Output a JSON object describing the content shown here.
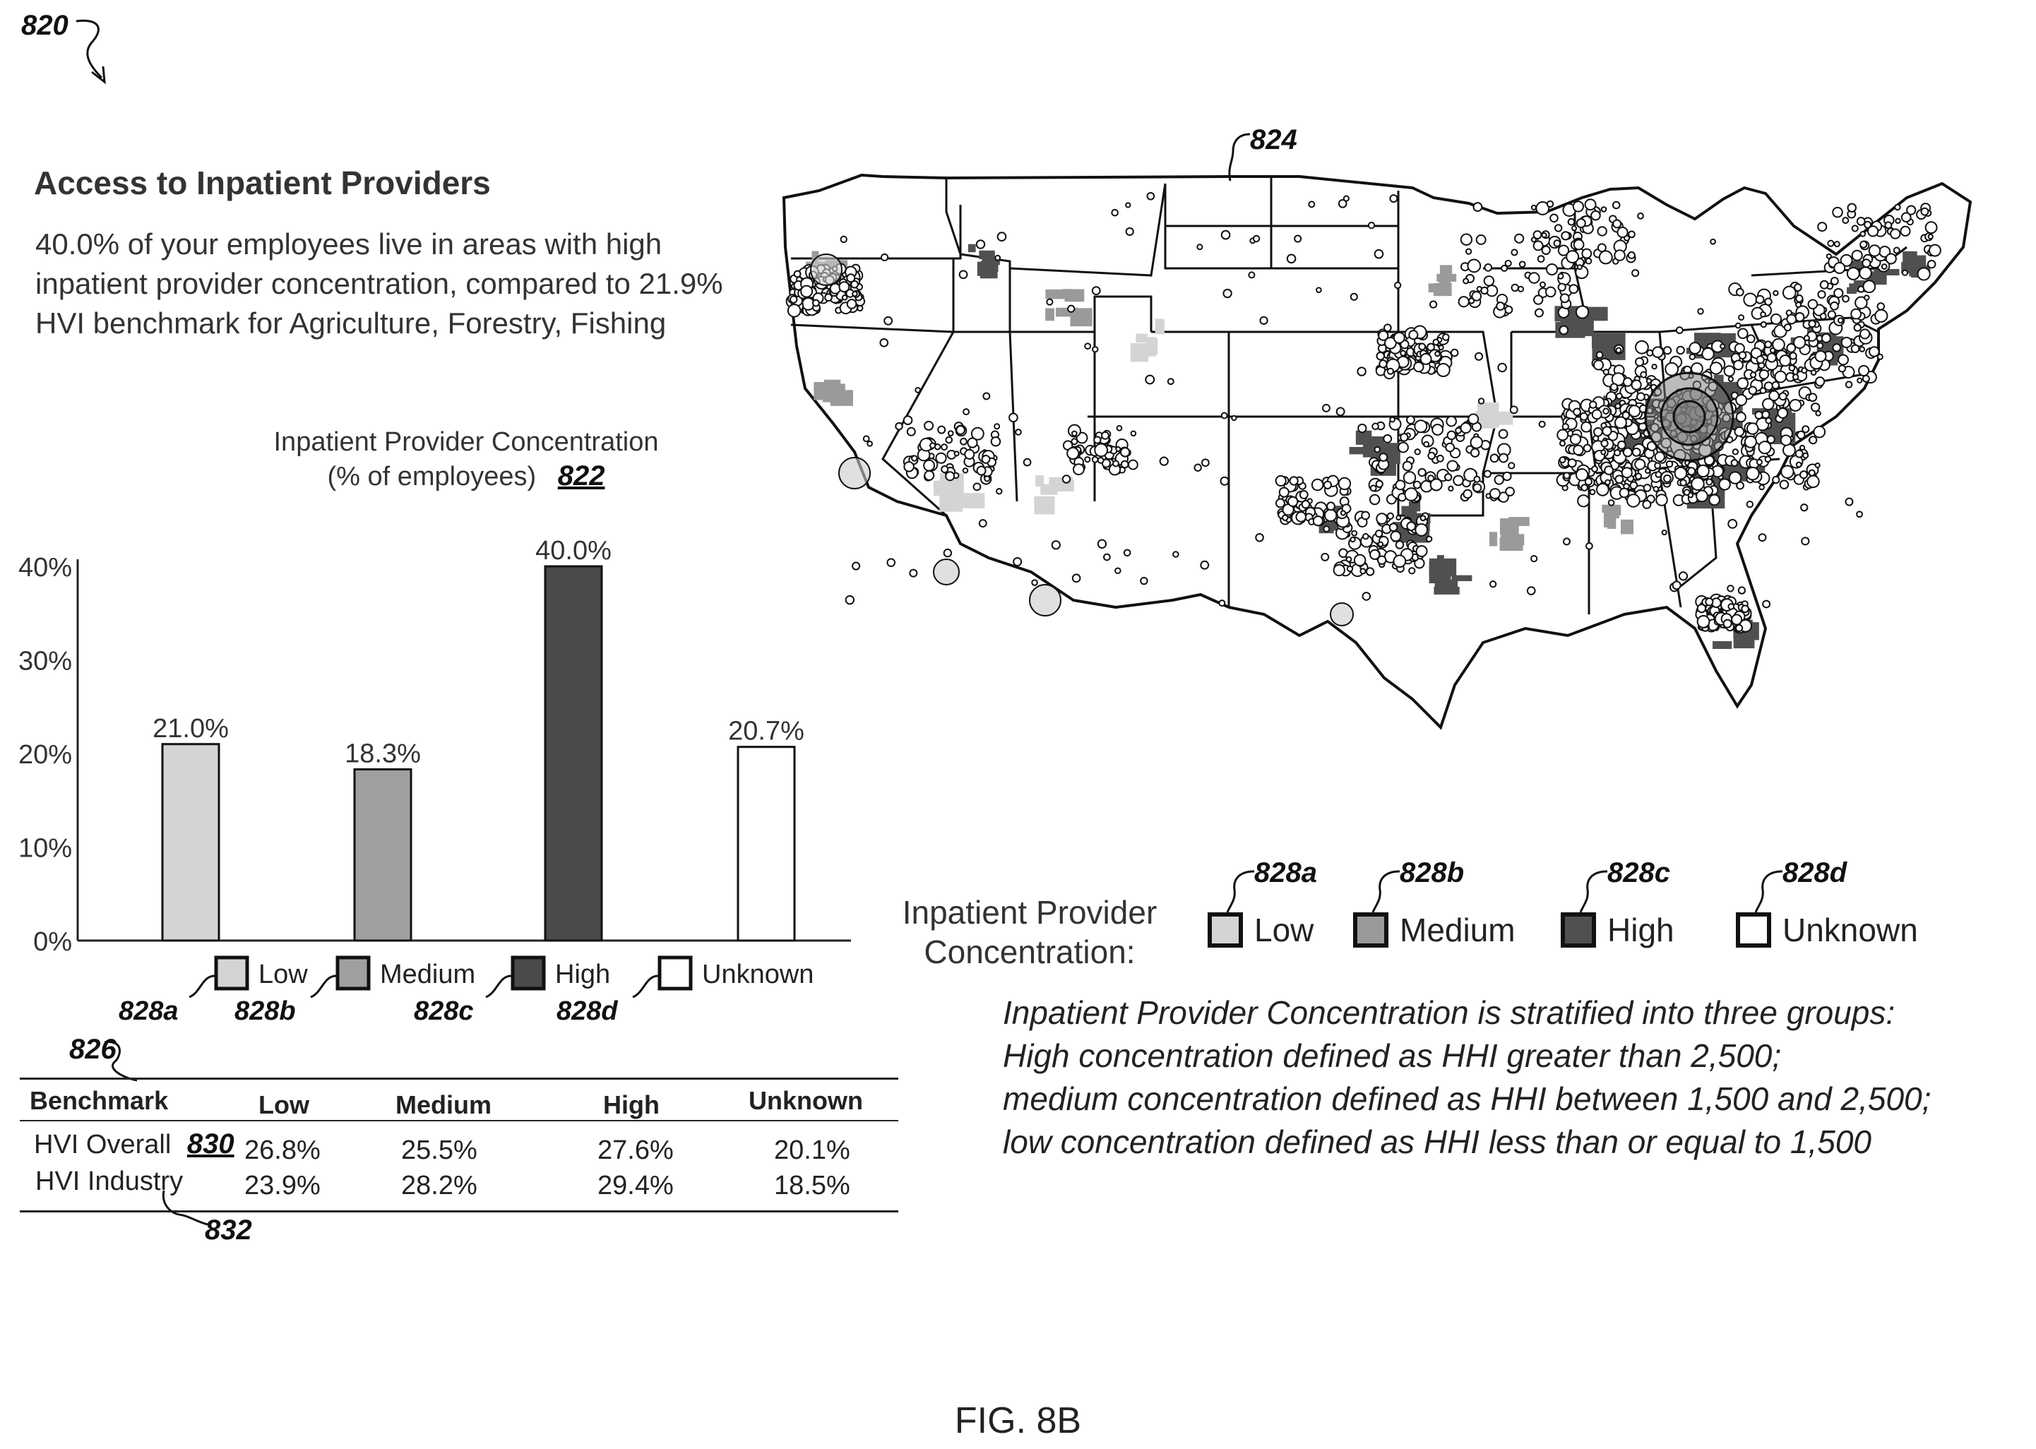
{
  "figure_ref": "820",
  "title": "Access to Inpatient Providers",
  "summary": "40.0% of your employees live in areas with high inpatient provider concentration, compared to 21.9% HVI benchmark for Agriculture, Forestry, Fishing",
  "chart": {
    "title_line1": "Inpatient Provider Concentration",
    "title_line2": "(% of employees)",
    "ref": "822"
  },
  "chart_data": {
    "type": "bar",
    "categories": [
      "Low",
      "Medium",
      "High",
      "Unknown"
    ],
    "values": [
      21.0,
      18.3,
      40.0,
      20.7
    ],
    "value_labels": [
      "21.0%",
      "18.3%",
      "40.0%",
      "20.7%"
    ],
    "ylim": [
      0,
      40
    ],
    "yticks": [
      "0%",
      "10%",
      "20%",
      "30%",
      "40%"
    ],
    "ytick_values": [
      0,
      10,
      20,
      30,
      40
    ],
    "colors": [
      "#d4d4d4",
      "#a0a0a0",
      "#4a4a4a",
      "#ffffff"
    ],
    "legend_refs": [
      "828a",
      "828b",
      "828c",
      "828d"
    ]
  },
  "table": {
    "ref": "826",
    "headers": [
      "Benchmark",
      "Low",
      "Medium",
      "High",
      "Unknown"
    ],
    "rows": [
      {
        "label": "HVI Overall",
        "ref": "830",
        "values": [
          "26.8%",
          "25.5%",
          "27.6%",
          "20.1%"
        ]
      },
      {
        "label": "HVI Industry",
        "ref": "832",
        "values": [
          "23.9%",
          "28.2%",
          "29.4%",
          "18.5%"
        ]
      }
    ]
  },
  "map": {
    "ref": "824",
    "legend_label": "Inpatient Provider Concentration:",
    "legend": [
      {
        "label": "Low",
        "ref": "828a",
        "color": "#d4d4d4"
      },
      {
        "label": "Medium",
        "ref": "828b",
        "color": "#9a9a9a"
      },
      {
        "label": "High",
        "ref": "828c",
        "color": "#505050"
      },
      {
        "label": "Unknown",
        "ref": "828d",
        "color": "#ffffff"
      }
    ]
  },
  "definition": [
    "Inpatient Provider Concentration is stratified into three groups:",
    "High concentration defined as HHI greater than 2,500;",
    "medium concentration defined as HHI between 1,500 and 2,500;",
    "low concentration defined as HHI less than or equal to 1,500"
  ],
  "figure_label": "FIG. 8B"
}
